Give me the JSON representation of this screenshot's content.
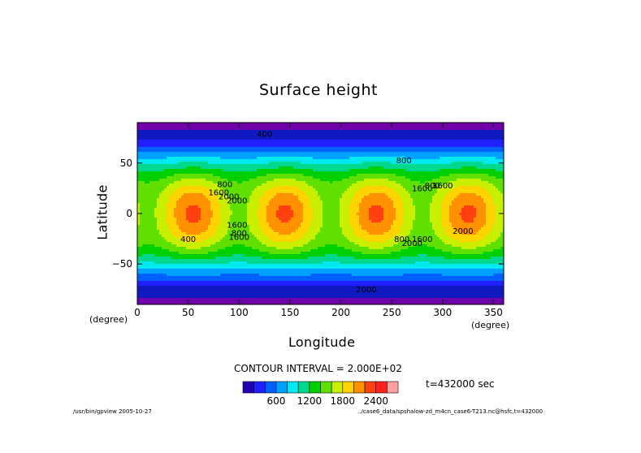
{
  "chart_data": {
    "type": "heatmap",
    "title": "Surface height",
    "xlabel": "Longitude",
    "ylabel": "Latitude",
    "x_unit": "(degree)",
    "y_unit": "(degree)",
    "xlim": [
      0,
      360
    ],
    "ylim": [
      -90,
      90
    ],
    "x_ticks": [
      0,
      50,
      100,
      150,
      200,
      250,
      300,
      350
    ],
    "y_ticks": [
      -50,
      0,
      50
    ],
    "contour_interval_text": "CONTOUR INTERVAL = 2.000E+02",
    "contour_interval": 200,
    "levels": [
      0,
      200,
      400,
      600,
      800,
      1000,
      1200,
      1400,
      1600,
      1800,
      2000,
      2200,
      2400,
      2600
    ],
    "colorbar": {
      "colors": [
        "#2020ff",
        "#0060ff",
        "#00a0ff",
        "#00e8f0",
        "#00d890",
        "#00d000",
        "#60e000",
        "#c8f000",
        "#ffd400",
        "#ff9000",
        "#ff4010",
        "#ff2020",
        "#ffa0a0"
      ],
      "tick_labels": [
        "600",
        "1200",
        "1800",
        "2400"
      ]
    },
    "contour_labels": [
      "400",
      "800",
      "1600",
      "2000",
      "2000",
      "1600",
      "800",
      "400",
      "1600",
      "800",
      "2000",
      "1600",
      "2000",
      "800",
      "1600",
      "800",
      "1600",
      "2000"
    ],
    "field": {
      "description_free": true,
      "cells_longitude": [
        55,
        145,
        235,
        325
      ],
      "max_value": 2400,
      "min_value": 0
    },
    "grid": false
  },
  "annotations": {
    "time": "t=432000 sec",
    "footer_left": "/usr/bin/gpview  2005-10-27",
    "footer_right": "../case6_data/spshalow-zd_m4cn_case6-T213.nc@hsfc,t=432000"
  }
}
